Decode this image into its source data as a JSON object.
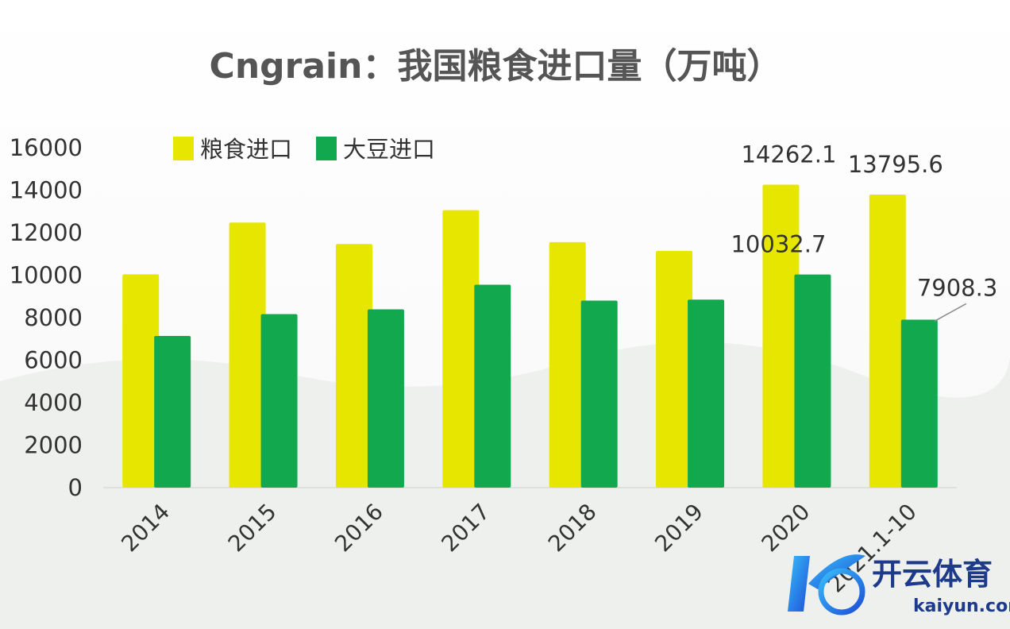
{
  "chart_data": {
    "type": "bar",
    "title": "Cngrain：我国粮食进口量（万吨）",
    "categories": [
      "2014",
      "2015",
      "2016",
      "2017",
      "2018",
      "2019",
      "2020",
      "2021.1-10"
    ],
    "series": [
      {
        "name": "粮食进口",
        "color": "#e6e600",
        "values": [
          10042,
          12477,
          11468,
          13062,
          11555,
          11144,
          14262.1,
          13795.6
        ]
      },
      {
        "name": "大豆进口",
        "color": "#12a84e",
        "values": [
          7140,
          8169,
          8391,
          9553,
          8803,
          8851,
          10032.7,
          7908.3
        ]
      }
    ],
    "ylim": [
      0,
      16000
    ],
    "yticks": [
      0,
      2000,
      4000,
      6000,
      8000,
      10000,
      12000,
      14000,
      16000
    ],
    "xlabel": "",
    "ylabel": "",
    "grid": false,
    "legend": "top-left",
    "annotations": [
      {
        "text": "14262.1",
        "series": 0,
        "category": 6
      },
      {
        "text": "13795.6",
        "series": 0,
        "category": 7
      },
      {
        "text": "10032.7",
        "series": 1,
        "category": 6
      },
      {
        "text": "7908.3",
        "series": 1,
        "category": 7
      }
    ]
  },
  "watermark": {
    "brand": "开云体育",
    "url": "kaiyun.com",
    "icon": "k-logo-icon"
  }
}
